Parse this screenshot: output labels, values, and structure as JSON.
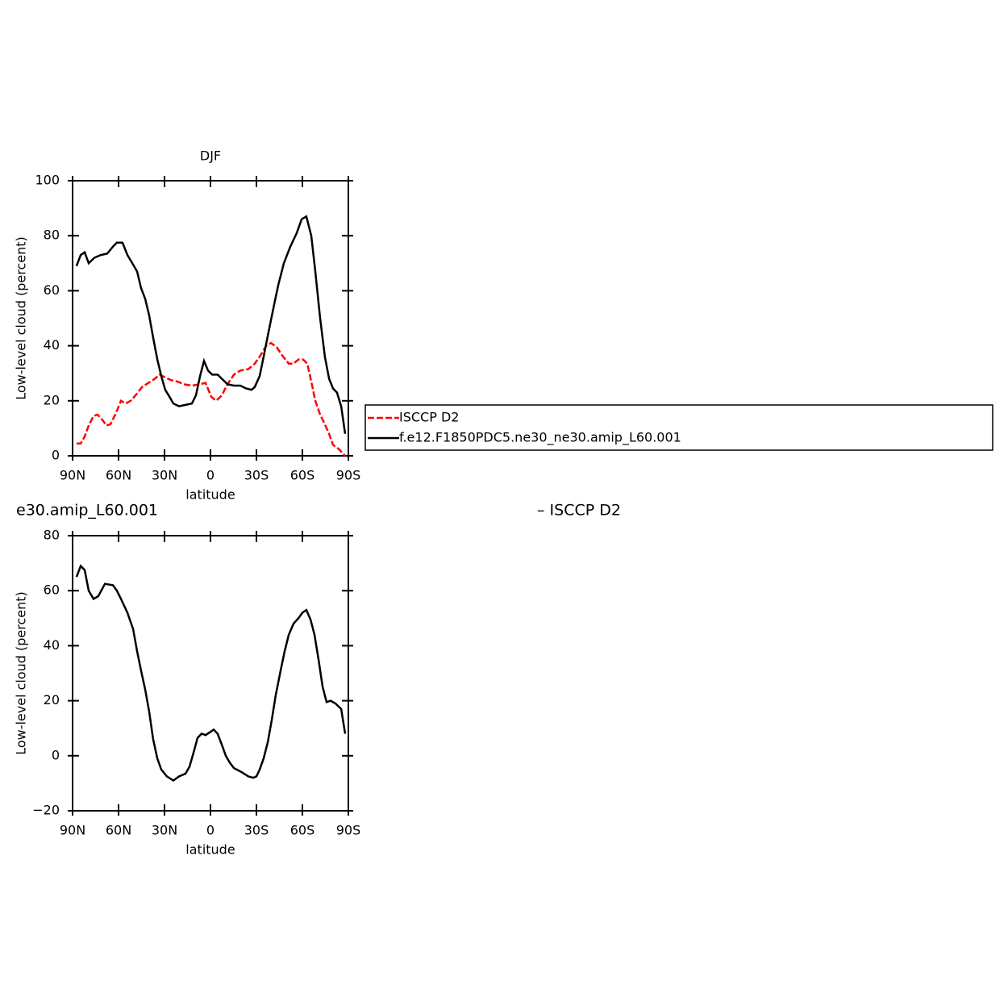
{
  "chart_data": [
    {
      "type": "line",
      "title": "DJF",
      "xlabel": "latitude",
      "ylabel": "Low-level cloud (percent)",
      "xlim": [
        90,
        -90
      ],
      "xticks": [
        {
          "value": 90,
          "label": "90N"
        },
        {
          "value": 60,
          "label": "60N"
        },
        {
          "value": 30,
          "label": "30N"
        },
        0,
        {
          "value": -30,
          "label": "30S"
        },
        {
          "value": -60,
          "label": "60S"
        },
        {
          "value": -90,
          "label": "90S"
        }
      ],
      "ylim": [
        0,
        100
      ],
      "yticks": [
        0,
        20,
        40,
        60,
        80,
        100
      ],
      "legend": "right",
      "series": [
        {
          "name": "ISCCP D2",
          "color": "#ff0000",
          "linestyle": "dashed",
          "x": [
            87.4,
            84.7,
            82.1,
            79.5,
            76.3,
            73.7,
            70.5,
            67.9,
            65.3,
            62.1,
            58.4,
            55.3,
            52.1,
            48.9,
            44.7,
            40.5,
            36.3,
            33.2,
            29.5,
            25.8,
            21.6,
            17.4,
            12.1,
            6.8,
            3.2,
            -0.5,
            -3.7,
            -7.4,
            -11.1,
            -15.3,
            -19.5,
            -24.7,
            -28.9,
            -33.2,
            -36.3,
            -39.5,
            -43.2,
            -46.8,
            -51.1,
            -54.2,
            -57.4,
            -60.5,
            -63.2,
            -65.8,
            -68.4,
            -71.6,
            -74.2,
            -77.4,
            -80,
            -83.7,
            -87.9
          ],
          "values": [
            4.5,
            4.5,
            7,
            11,
            14.5,
            15,
            13,
            11,
            11.5,
            15,
            20,
            19,
            20,
            22,
            25,
            26.5,
            28,
            29.5,
            28.5,
            27.5,
            27,
            26,
            25.5,
            26,
            26.5,
            21.5,
            20,
            22,
            26,
            29.5,
            31,
            31.5,
            33.5,
            37,
            40,
            41,
            39.5,
            36.5,
            33.5,
            33.5,
            35,
            35,
            33.5,
            27,
            20,
            15,
            12,
            8,
            4,
            2.5,
            0
          ]
        },
        {
          "name": "f.e12.F1850PDC5.ne30_ne30.amip_L60.001",
          "color": "#000000",
          "linestyle": "solid",
          "x": [
            87.4,
            84.7,
            82.1,
            79.5,
            75.8,
            71.6,
            67.4,
            63.7,
            61.1,
            57.4,
            54.2,
            50.5,
            47.9,
            45.3,
            42.6,
            40,
            37.4,
            34.7,
            32.1,
            29.5,
            26.8,
            24.2,
            20.5,
            16.3,
            12.1,
            9.5,
            6.8,
            4.2,
            1.6,
            -1.1,
            -4.7,
            -7.4,
            -11.1,
            -15.3,
            -19.5,
            -23.2,
            -26.8,
            -28.9,
            -32.1,
            -34.7,
            -37.9,
            -41.6,
            -44.2,
            -47.9,
            -52.1,
            -56.3,
            -59.5,
            -62.6,
            -65.8,
            -68.4,
            -71.6,
            -74.7,
            -77.4,
            -80,
            -82.6,
            -85.3,
            -87.9
          ],
          "values": [
            69,
            73,
            74,
            70,
            72,
            73,
            73.5,
            76,
            77.5,
            77.5,
            73,
            69.5,
            67,
            61,
            57,
            51,
            43,
            35,
            29,
            24,
            21.5,
            19,
            18,
            18.5,
            19,
            22,
            29,
            34.5,
            31,
            29.5,
            29.5,
            28,
            26,
            25.5,
            25.5,
            24.5,
            24,
            25,
            29,
            36,
            45,
            55,
            62,
            70,
            76,
            81,
            86,
            87,
            80,
            67,
            50,
            36,
            28,
            24.5,
            23,
            18,
            8
          ]
        }
      ]
    },
    {
      "type": "line",
      "left_title": "e30.amip_L60.001",
      "right_title": "– ISCCP D2",
      "xlabel": "latitude",
      "ylabel": "Low-level cloud (percent)",
      "xlim": [
        90,
        -90
      ],
      "xticks": [
        {
          "value": 90,
          "label": "90N"
        },
        {
          "value": 60,
          "label": "60N"
        },
        {
          "value": 30,
          "label": "30N"
        },
        0,
        {
          "value": -30,
          "label": "30S"
        },
        {
          "value": -60,
          "label": "60S"
        },
        {
          "value": -90,
          "label": "90S"
        }
      ],
      "ylim": [
        -20,
        80
      ],
      "yticks": [
        {
          "value": -20,
          "label": "−20"
        },
        0,
        20,
        40,
        60,
        80
      ],
      "series": [
        {
          "color": "#000000",
          "linestyle": "solid",
          "x": [
            87.4,
            84.7,
            82.1,
            79.5,
            76.3,
            73.2,
            68.9,
            63.7,
            61.1,
            58.4,
            54.2,
            50.5,
            47.9,
            45.3,
            42.6,
            40,
            37.4,
            34.7,
            32.1,
            28.4,
            24.2,
            20.5,
            16.3,
            13.7,
            11.1,
            8.4,
            5.8,
            3.2,
            0.5,
            -2.1,
            -4.7,
            -7.4,
            -10,
            -12.6,
            -15.3,
            -20.5,
            -24.7,
            -27.9,
            -30,
            -32.1,
            -34.7,
            -37.4,
            -40,
            -42.6,
            -45.8,
            -48.4,
            -51.1,
            -54.2,
            -57.4,
            -60,
            -62.6,
            -65.3,
            -67.9,
            -70.5,
            -73.2,
            -75.8,
            -78.4,
            -81.6,
            -85.3,
            -87.9
          ],
          "values": [
            65,
            69,
            67.5,
            60,
            57,
            58,
            62.5,
            62,
            60,
            57,
            52,
            46,
            38,
            31,
            24,
            16,
            6,
            -1,
            -5,
            -7.5,
            -9,
            -7.5,
            -6.5,
            -4,
            1,
            6.5,
            8,
            7.5,
            8.5,
            9.5,
            8,
            4,
            0,
            -2.5,
            -4.5,
            -6,
            -7.5,
            -8,
            -7.5,
            -5,
            -1,
            5,
            13,
            22,
            31,
            38,
            44,
            48,
            50,
            52,
            53,
            49.5,
            44,
            35,
            25,
            19.5,
            20,
            19,
            17,
            8
          ]
        }
      ]
    }
  ]
}
